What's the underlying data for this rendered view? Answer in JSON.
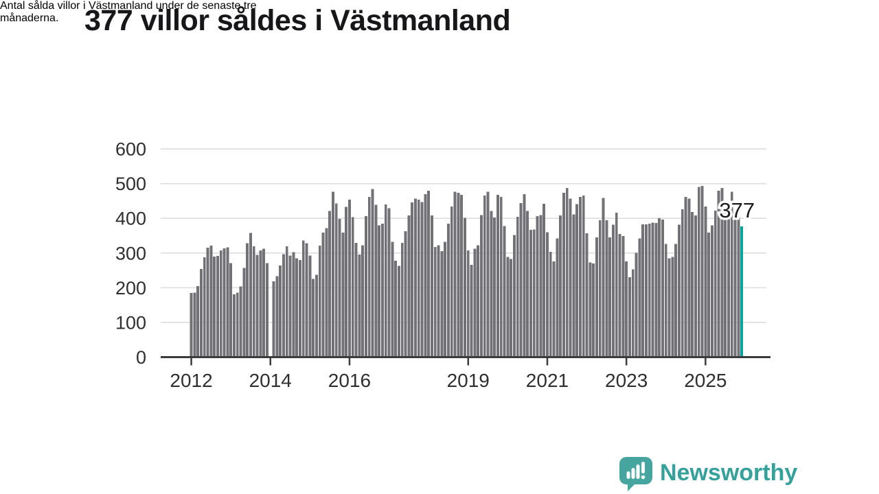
{
  "header": {
    "title": "377 villor såldes i Västmanland",
    "subtitle_line1": "Antal sålda villor i Västmanland under de senaste tre",
    "subtitle_line2": "månaderna."
  },
  "chart_data": {
    "type": "bar",
    "title": "377 villor såldes i Västmanland",
    "xlabel": "",
    "ylabel": "",
    "frequency": "monthly",
    "x_start": "2012-01",
    "x_end": "2025-12",
    "ylim": [
      0,
      600
    ],
    "yticks": [
      0,
      100,
      200,
      300,
      400,
      500,
      600
    ],
    "xtick_years": [
      2012,
      2014,
      2016,
      2019,
      2021,
      2023,
      2025
    ],
    "grid": true,
    "legend": null,
    "bar_color": "#717176",
    "highlight_color": "#00a29d",
    "axis_color": "#3b3b3b",
    "grid_color": "#dddddd",
    "tick_label_color": "#2f2f2f",
    "annotation": {
      "label": "377",
      "index": 167
    },
    "values": [
      185,
      186,
      205,
      254,
      288,
      315,
      321,
      290,
      292,
      308,
      313,
      316,
      271,
      181,
      186,
      204,
      257,
      328,
      358,
      319,
      295,
      308,
      312,
      271,
      null,
      219,
      233,
      264,
      297,
      319,
      293,
      303,
      285,
      280,
      336,
      328,
      293,
      225,
      237,
      321,
      359,
      372,
      421,
      477,
      443,
      398,
      359,
      433,
      454,
      403,
      329,
      296,
      322,
      406,
      462,
      485,
      439,
      380,
      385,
      440,
      429,
      332,
      278,
      263,
      329,
      363,
      408,
      446,
      457,
      454,
      447,
      470,
      480,
      408,
      317,
      322,
      306,
      332,
      385,
      434,
      477,
      474,
      468,
      401,
      308,
      266,
      312,
      322,
      409,
      466,
      477,
      421,
      402,
      468,
      462,
      378,
      289,
      283,
      352,
      404,
      444,
      470,
      421,
      367,
      368,
      406,
      409,
      442,
      360,
      304,
      276,
      342,
      408,
      474,
      487,
      457,
      411,
      441,
      462,
      466,
      357,
      273,
      270,
      345,
      395,
      459,
      395,
      345,
      382,
      416,
      355,
      349,
      276,
      230,
      253,
      301,
      342,
      383,
      383,
      385,
      388,
      387,
      400,
      397,
      326,
      285,
      289,
      326,
      382,
      426,
      462,
      457,
      418,
      408,
      490,
      493,
      434,
      359,
      380,
      422,
      480,
      487,
      451,
      442,
      477,
      405,
      401,
      377
    ]
  },
  "footer": {
    "brand": "Newsworthy",
    "brand_color": "#35a19a",
    "logo_mark_color": "#47a5a0"
  }
}
